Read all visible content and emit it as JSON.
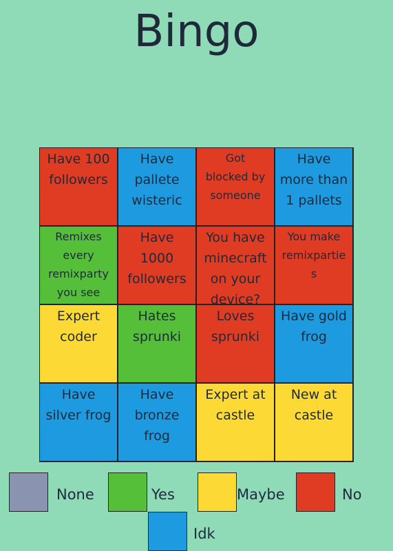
{
  "header": {
    "title": "Bingo"
  },
  "board": {
    "rows": [
      [
        {
          "lines": [
            "Have 100",
            "followers"
          ],
          "color": "#e03c24"
        },
        {
          "lines": [
            "Have",
            "pallete",
            "wisteric"
          ],
          "color": "#1e9be0"
        },
        {
          "lines": [
            "Got",
            "blocked by",
            "someone"
          ],
          "color": "#e03c24"
        },
        {
          "lines": [
            "Have",
            "more than",
            "1 pallets"
          ],
          "color": "#1e9be0"
        }
      ],
      [
        {
          "lines": [
            "Remixes",
            "every",
            "remixparty",
            "you see"
          ],
          "color": "#56bf3a"
        },
        {
          "lines": [
            "Have",
            "1000",
            "followers"
          ],
          "color": "#e03c24"
        },
        {
          "lines": [
            "You have",
            "minecraft",
            "on your",
            "device?"
          ],
          "color": "#e03c24"
        },
        {
          "lines": [
            "You make",
            "remixpartie",
            "s"
          ],
          "color": "#e03c24"
        }
      ],
      [
        {
          "lines": [
            "Expert",
            "coder"
          ],
          "color": "#fdd935"
        },
        {
          "lines": [
            "Hates",
            "sprunki"
          ],
          "color": "#56bf3a"
        },
        {
          "lines": [
            "Loves",
            "sprunki"
          ],
          "color": "#e03c24"
        },
        {
          "lines": [
            "Have gold",
            "frog"
          ],
          "color": "#1e9be0"
        }
      ],
      [
        {
          "lines": [
            "Have",
            "silver frog"
          ],
          "color": "#1e9be0"
        },
        {
          "lines": [
            "Have",
            "bronze",
            "frog"
          ],
          "color": "#1e9be0"
        },
        {
          "lines": [
            "Expert at",
            "castle"
          ],
          "color": "#fdd935"
        },
        {
          "lines": [
            "New at",
            "castle"
          ],
          "color": "#fdd935"
        }
      ]
    ]
  },
  "legend": [
    {
      "label": "None",
      "color": "#8a93b0"
    },
    {
      "label": "Yes",
      "color": "#56bf3a"
    },
    {
      "label": "Maybe",
      "color": "#fdd935"
    },
    {
      "label": "No",
      "color": "#e03c24"
    },
    {
      "label": "Idk",
      "color": "#1e9be0"
    }
  ]
}
